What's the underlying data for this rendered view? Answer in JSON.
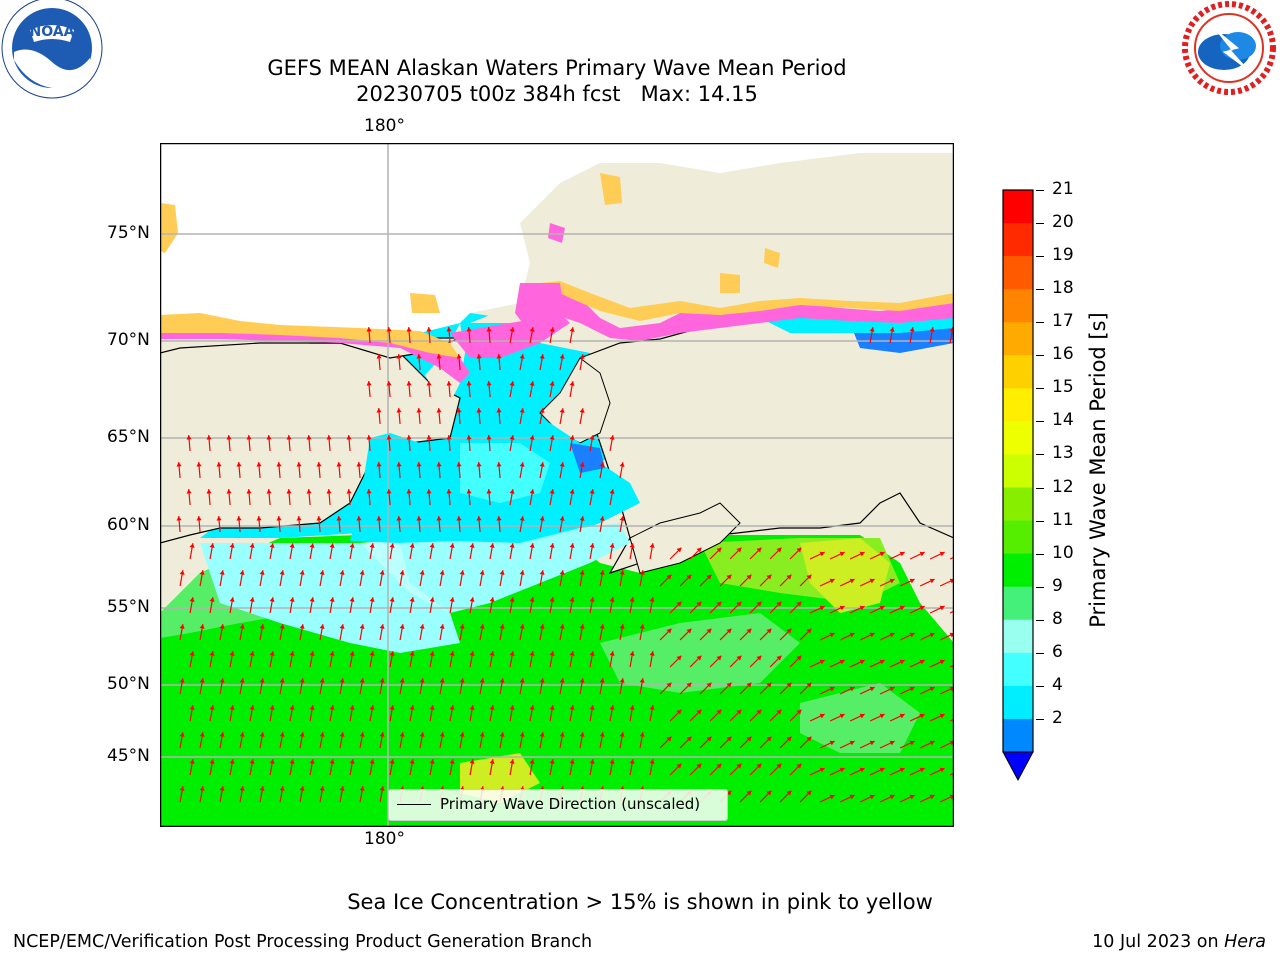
{
  "title": {
    "line1": "GEFS MEAN Alaskan Waters Primary Wave Mean Period",
    "line2": "20230705 t00z 384h fcst   Max: 14.15"
  },
  "logos": {
    "left": {
      "name": "noaa-logo",
      "text": "NOAA",
      "ring_text": "NATIONAL OCEANIC AND ATMOSPHERIC ADMINISTRATION · U.S. DEPARTMENT OF COMMERCE"
    },
    "right": {
      "name": "nws-logo",
      "ring_text": "NATIONAL WEATHER SERVICE"
    }
  },
  "map": {
    "lon_labels_top": [
      "180°"
    ],
    "lon_labels_bottom": [
      "180°"
    ],
    "lat_labels": [
      "75°N",
      "70°N",
      "65°N",
      "60°N",
      "55°N",
      "50°N",
      "45°N"
    ],
    "legend_label": "Primary Wave Direction (unscaled)",
    "arrow_color": "#ff0000",
    "land_color": "#efedd9",
    "ocean_colors": {
      "green": "#22dd11",
      "light_green": "#55ee66",
      "cyan": "#00f0ff",
      "light_cyan": "#99ffff",
      "yellow_green": "#ccee11"
    }
  },
  "colorbar": {
    "label": "Primary Wave Mean Period [s]",
    "ticks": [
      "21",
      "20",
      "19",
      "18",
      "17",
      "16",
      "15",
      "14",
      "13",
      "12",
      "11",
      "10",
      "9",
      "8",
      "6",
      "4",
      "2"
    ],
    "colors_top_to_bottom": [
      "#ff0000",
      "#ff2a00",
      "#ff5a00",
      "#ff8400",
      "#ffaa00",
      "#ffd000",
      "#ffee00",
      "#eeff00",
      "#ccff00",
      "#88ee00",
      "#55ee00",
      "#00ee00",
      "#44f07a",
      "#99ffee",
      "#44ffff",
      "#00eeff",
      "#0088ff"
    ],
    "extend_color": "#0000ff"
  },
  "footer": {
    "note": "Sea Ice Concentration > 15% is shown in pink to yellow",
    "left": "NCEP/EMC/Verification Post Processing Product Generation Branch",
    "right_prefix": "10 Jul 2023 on ",
    "right_host": "Hera"
  }
}
